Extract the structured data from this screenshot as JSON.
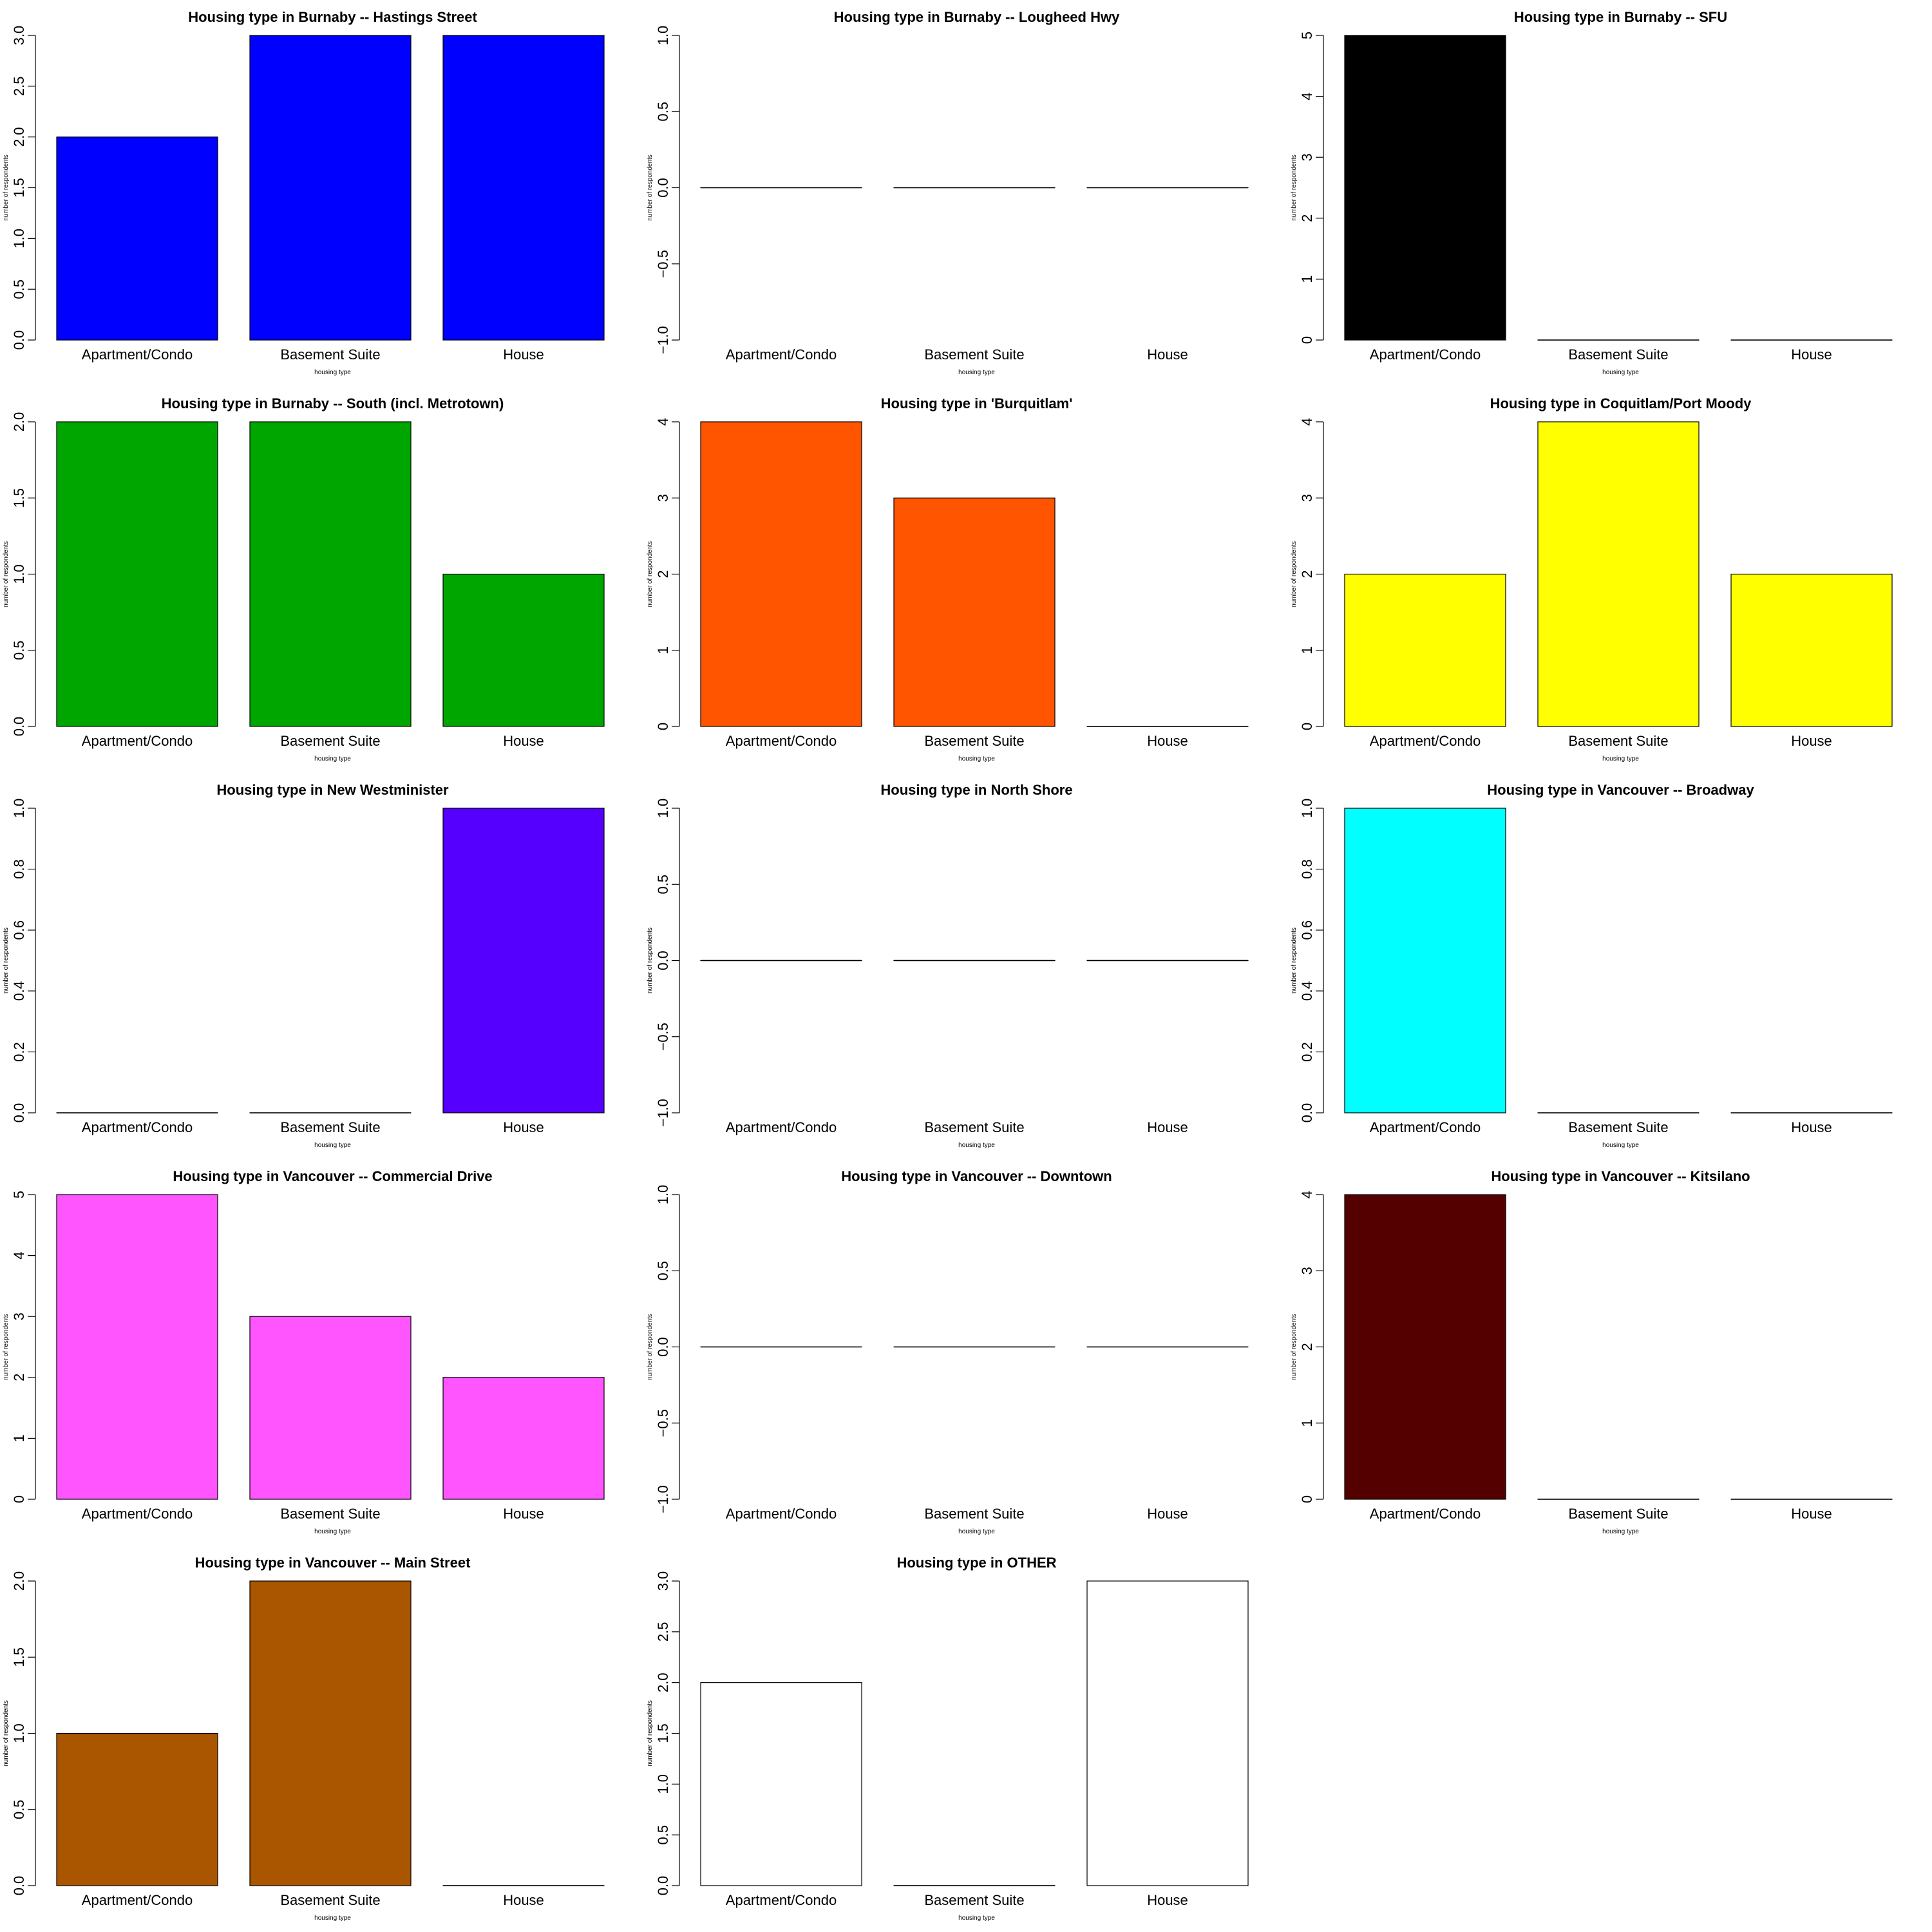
{
  "chart_data": [
    {
      "type": "bar",
      "title": "Housing type in Burnaby -- Hastings Street",
      "categories": [
        "Apartment/Condo",
        "Basement Suite",
        "House"
      ],
      "values": [
        2,
        3,
        3
      ],
      "color": "#0000FF",
      "xlabel": "housing type",
      "ylabel": "number of respondents",
      "ylim": [
        0,
        3
      ],
      "yticks": [
        "0.0",
        "0.5",
        "1.0",
        "1.5",
        "2.0",
        "2.5",
        "3.0"
      ]
    },
    {
      "type": "bar",
      "title": "Housing type in Burnaby -- Lougheed Hwy",
      "categories": [
        "Apartment/Condo",
        "Basement Suite",
        "House"
      ],
      "values": [
        0,
        0,
        0
      ],
      "color": "#FFFFFF",
      "xlabel": "housing type",
      "ylabel": "number of respondents",
      "ylim": [
        -1,
        1
      ],
      "yticks": [
        "−1.0",
        "−0.5",
        "0.0",
        "0.5",
        "1.0"
      ]
    },
    {
      "type": "bar",
      "title": "Housing type in Burnaby -- SFU",
      "categories": [
        "Apartment/Condo",
        "Basement Suite",
        "House"
      ],
      "values": [
        5,
        0,
        0
      ],
      "color": "#000000",
      "xlabel": "housing type",
      "ylabel": "number of respondents",
      "ylim": [
        0,
        5
      ],
      "yticks": [
        "0",
        "1",
        "2",
        "3",
        "4",
        "5"
      ]
    },
    {
      "type": "bar",
      "title": "Housing type in Burnaby -- South (incl. Metrotown)",
      "categories": [
        "Apartment/Condo",
        "Basement Suite",
        "House"
      ],
      "values": [
        2,
        2,
        1
      ],
      "color": "#00A600",
      "xlabel": "housing type",
      "ylabel": "number of respondents",
      "ylim": [
        0,
        2
      ],
      "yticks": [
        "0.0",
        "0.5",
        "1.0",
        "1.5",
        "2.0"
      ]
    },
    {
      "type": "bar",
      "title": "Housing type in 'Burquitlam'",
      "categories": [
        "Apartment/Condo",
        "Basement Suite",
        "House"
      ],
      "values": [
        4,
        3,
        0
      ],
      "color": "#FF5500",
      "xlabel": "housing type",
      "ylabel": "number of respondents",
      "ylim": [
        0,
        4
      ],
      "yticks": [
        "0",
        "1",
        "2",
        "3",
        "4"
      ]
    },
    {
      "type": "bar",
      "title": "Housing type in Coquitlam/Port Moody",
      "categories": [
        "Apartment/Condo",
        "Basement Suite",
        "House"
      ],
      "values": [
        2,
        4,
        2
      ],
      "color": "#FFFF00",
      "xlabel": "housing type",
      "ylabel": "number of respondents",
      "ylim": [
        0,
        4
      ],
      "yticks": [
        "0",
        "1",
        "2",
        "3",
        "4"
      ]
    },
    {
      "type": "bar",
      "title": "Housing type in New Westminister",
      "categories": [
        "Apartment/Condo",
        "Basement Suite",
        "House"
      ],
      "values": [
        0,
        0,
        1
      ],
      "color": "#5500FF",
      "xlabel": "housing type",
      "ylabel": "number of respondents",
      "ylim": [
        0,
        1
      ],
      "yticks": [
        "0.0",
        "0.2",
        "0.4",
        "0.6",
        "0.8",
        "1.0"
      ]
    },
    {
      "type": "bar",
      "title": "Housing type in North Shore",
      "categories": [
        "Apartment/Condo",
        "Basement Suite",
        "House"
      ],
      "values": [
        0,
        0,
        0
      ],
      "color": "#FFFFFF",
      "xlabel": "housing type",
      "ylabel": "number of respondents",
      "ylim": [
        -1,
        1
      ],
      "yticks": [
        "−1.0",
        "−0.5",
        "0.0",
        "0.5",
        "1.0"
      ]
    },
    {
      "type": "bar",
      "title": "Housing type in Vancouver -- Broadway",
      "categories": [
        "Apartment/Condo",
        "Basement Suite",
        "House"
      ],
      "values": [
        1,
        0,
        0
      ],
      "color": "#00FFFF",
      "xlabel": "housing type",
      "ylabel": "number of respondents",
      "ylim": [
        0,
        1
      ],
      "yticks": [
        "0.0",
        "0.2",
        "0.4",
        "0.6",
        "0.8",
        "1.0"
      ]
    },
    {
      "type": "bar",
      "title": "Housing type in Vancouver -- Commercial Drive",
      "categories": [
        "Apartment/Condo",
        "Basement Suite",
        "House"
      ],
      "values": [
        5,
        3,
        2
      ],
      "color": "#FF55FF",
      "xlabel": "housing type",
      "ylabel": "number of respondents",
      "ylim": [
        0,
        5
      ],
      "yticks": [
        "0",
        "1",
        "2",
        "3",
        "4",
        "5"
      ]
    },
    {
      "type": "bar",
      "title": "Housing type in Vancouver -- Downtown",
      "categories": [
        "Apartment/Condo",
        "Basement Suite",
        "House"
      ],
      "values": [
        0,
        0,
        0
      ],
      "color": "#FFFFFF",
      "xlabel": "housing type",
      "ylabel": "number of respondents",
      "ylim": [
        -1,
        1
      ],
      "yticks": [
        "−1.0",
        "−0.5",
        "0.0",
        "0.5",
        "1.0"
      ]
    },
    {
      "type": "bar",
      "title": "Housing type in Vancouver -- Kitsilano",
      "categories": [
        "Apartment/Condo",
        "Basement Suite",
        "House"
      ],
      "values": [
        4,
        0,
        0
      ],
      "color": "#550000",
      "xlabel": "housing type",
      "ylabel": "number of respondents",
      "ylim": [
        0,
        4
      ],
      "yticks": [
        "0",
        "1",
        "2",
        "3",
        "4"
      ]
    },
    {
      "type": "bar",
      "title": "Housing type in Vancouver -- Main Street",
      "categories": [
        "Apartment/Condo",
        "Basement Suite",
        "House"
      ],
      "values": [
        1,
        2,
        0
      ],
      "color": "#AA5500",
      "xlabel": "housing type",
      "ylabel": "number of respondents",
      "ylim": [
        0,
        2
      ],
      "yticks": [
        "0.0",
        "0.5",
        "1.0",
        "1.5",
        "2.0"
      ]
    },
    {
      "type": "bar",
      "title": "Housing type in OTHER",
      "categories": [
        "Apartment/Condo",
        "Basement Suite",
        "House"
      ],
      "values": [
        2,
        0,
        3
      ],
      "color": "#FFFFFF",
      "xlabel": "housing type",
      "ylabel": "number of respondents",
      "ylim": [
        0,
        3
      ],
      "yticks": [
        "0.0",
        "0.5",
        "1.0",
        "1.5",
        "2.0",
        "2.5",
        "3.0"
      ]
    }
  ]
}
